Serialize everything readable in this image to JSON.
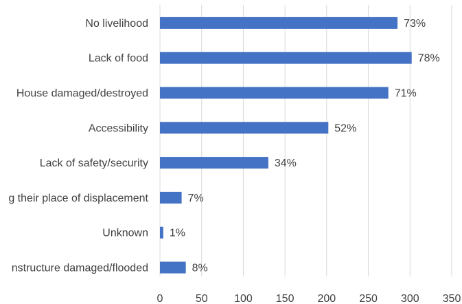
{
  "chart_data": {
    "type": "bar",
    "orientation": "horizontal",
    "categories": [
      "No livelihood",
      "Lack of food",
      "House damaged/destroyed",
      "Accessibility",
      "Lack of safety/security",
      "g their place of displacement",
      "Unknown",
      "nstructure damaged/flooded"
    ],
    "values": [
      285,
      302,
      274,
      202,
      130,
      26,
      4,
      31
    ],
    "data_labels": [
      "73%",
      "78%",
      "71%",
      "52%",
      "34%",
      "7%",
      "1%",
      "8%"
    ],
    "xlim": [
      0,
      350
    ],
    "xticks": [
      0,
      50,
      100,
      150,
      200,
      250,
      300,
      350
    ],
    "grid": "vertical",
    "bar_color": "#4472C4",
    "grid_color": "#d9d9d9"
  }
}
